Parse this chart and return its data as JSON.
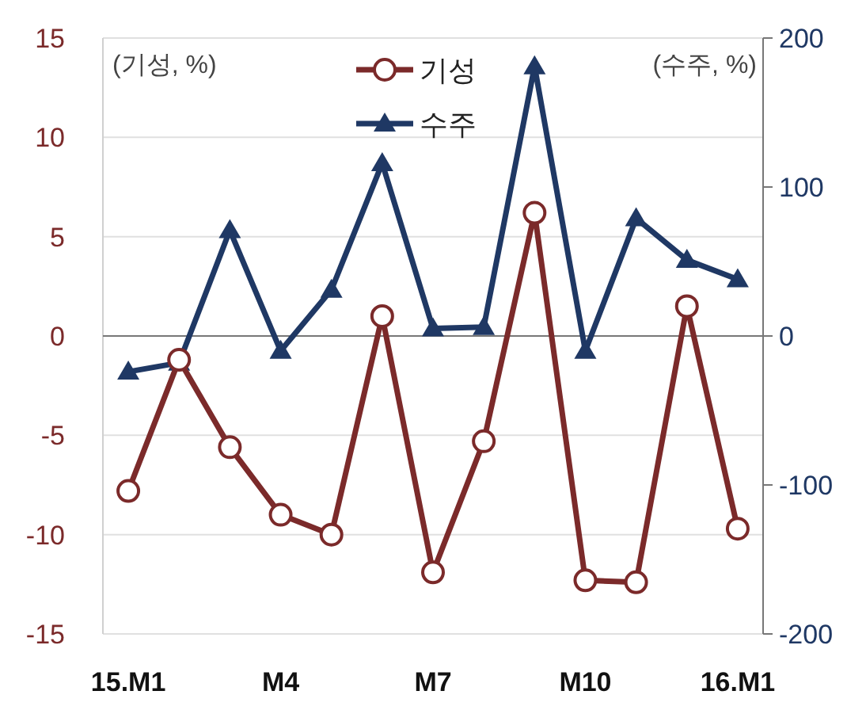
{
  "chart_data": {
    "type": "line",
    "ylabel": "(기성, %)",
    "y2label": "(수주, %)",
    "categories": [
      "15.M1",
      null,
      null,
      "M4",
      null,
      null,
      "M7",
      null,
      null,
      "M10",
      null,
      null,
      "16.M1"
    ],
    "series": [
      {
        "name": "기성",
        "color": "#7b2a2a",
        "marker": "circle",
        "values": [
          -7.8,
          -1.2,
          -5.6,
          -9.0,
          -10.0,
          1.0,
          -11.9,
          -5.3,
          6.2,
          -12.3,
          -12.4,
          1.5,
          -9.7
        ]
      },
      {
        "name": "수주",
        "color": "#1f3864",
        "marker": "triangle",
        "axis": "y2",
        "values": [
          -24,
          -18,
          71,
          -10,
          31,
          116,
          5,
          6,
          181,
          -10,
          79,
          51,
          38
        ]
      }
    ],
    "ylim": [
      -15,
      15
    ],
    "yticks": [
      -15,
      -10,
      -5,
      0,
      5,
      10,
      15
    ],
    "y2lim": [
      -200,
      200
    ],
    "y2ticks": [
      -200,
      -100,
      0,
      100,
      200
    ],
    "grid": "y",
    "legend": "top"
  }
}
